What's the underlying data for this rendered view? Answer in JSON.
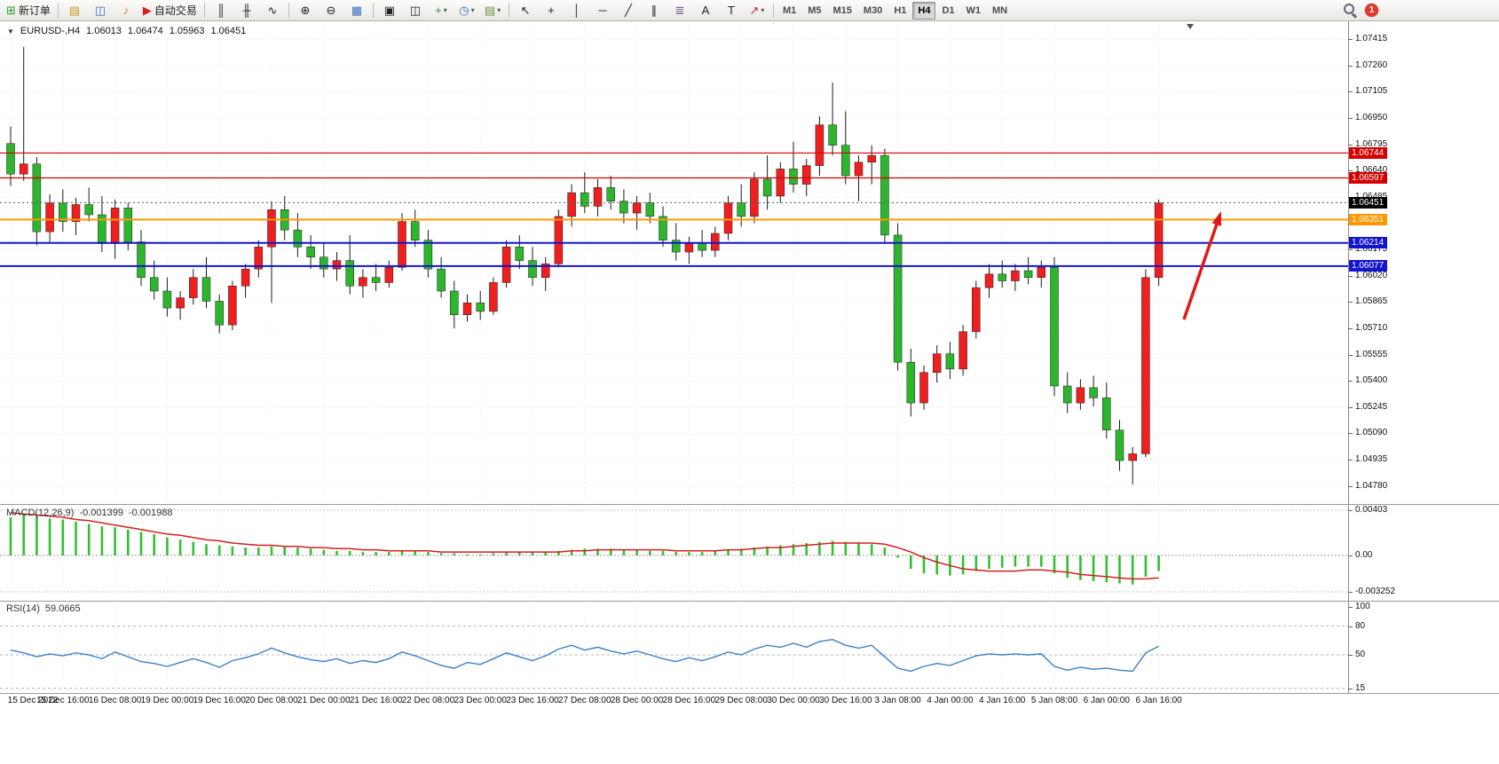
{
  "icons": {
    "dropdown": "▼"
  },
  "toolbar": {
    "badge_count": "1",
    "timeframes": [
      "M1",
      "M5",
      "M15",
      "M30",
      "H1",
      "H4",
      "D1",
      "W1",
      "MN"
    ],
    "active_timeframe": "H4",
    "items": [
      {
        "name": "new-order-button",
        "icon": "⊞",
        "color": "#2e9e2e",
        "label": "新订单"
      },
      {
        "sep": true
      },
      {
        "name": "charts-button",
        "icon": "▤",
        "color": "#c89a1e"
      },
      {
        "name": "profiles-button",
        "icon": "◫",
        "color": "#3a6fc4"
      },
      {
        "name": "alerts-button",
        "icon": "♪",
        "color": "#b8860b"
      },
      {
        "name": "autotrading-button",
        "icon": "▶",
        "color": "#cc2222",
        "label": "自动交易"
      },
      {
        "sep": true
      },
      {
        "name": "bar-chart-button",
        "icon": "║"
      },
      {
        "name": "candlestick-button",
        "icon": "╫"
      },
      {
        "name": "line-chart-button",
        "icon": "∿"
      },
      {
        "sep": true
      },
      {
        "name": "zoom-in-button",
        "icon": "⊕"
      },
      {
        "name": "zoom-out-button",
        "icon": "⊖"
      },
      {
        "name": "tile-windows-button",
        "icon": "▦",
        "color": "#3a6fc4"
      },
      {
        "sep": true
      },
      {
        "name": "cascade-windows-button",
        "icon": "▣"
      },
      {
        "name": "arrange-windows-button",
        "icon": "◫"
      },
      {
        "name": "new-chart-button",
        "icon": "+",
        "color": "#2e9e2e",
        "dropdown": true
      },
      {
        "name": "period-button",
        "icon": "◷",
        "color": "#3a6fc4",
        "dropdown": true
      },
      {
        "name": "template-button",
        "icon": "▤",
        "color": "#6a8f3f",
        "dropdown": true
      },
      {
        "sep": true
      },
      {
        "name": "cursor-button",
        "icon": "↖"
      },
      {
        "name": "crosshair-button",
        "icon": "+"
      },
      {
        "name": "vertical-line-button",
        "icon": "│"
      },
      {
        "name": "horizontal-line-button",
        "icon": "─"
      },
      {
        "name": "trendline-button",
        "icon": "╱"
      },
      {
        "name": "channel-button",
        "icon": "∥"
      },
      {
        "name": "fibonacci-button",
        "icon": "≣",
        "color": "#7a5a9a"
      },
      {
        "name": "text-button",
        "icon": "A"
      },
      {
        "name": "label-button",
        "icon": "T"
      },
      {
        "name": "arrows-button",
        "icon": "↗",
        "color": "#b03030",
        "dropdown": true
      },
      {
        "sep": true
      }
    ]
  },
  "chart": {
    "symbol_period": "EURUSD-,H4",
    "ohlc": {
      "o": "1.06013",
      "h": "1.06474",
      "l": "1.05963",
      "c": "1.06451"
    },
    "price_axis": [
      "1.07415",
      "1.07260",
      "1.07105",
      "1.06950",
      "1.06795",
      "1.06640",
      "1.06485",
      "1.06330",
      "1.06175",
      "1.06020",
      "1.05865",
      "1.05710",
      "1.05555",
      "1.05400",
      "1.05245",
      "1.05090",
      "1.04935",
      "1.04780"
    ],
    "time_axis": [
      [
        0,
        "15 Dec 2022"
      ],
      [
        4,
        "15 Dec 16:00"
      ],
      [
        8,
        "16 Dec 08:00"
      ],
      [
        12,
        "19 Dec 00:00"
      ],
      [
        16,
        "19 Dec 16:00"
      ],
      [
        20,
        "20 Dec 08:00"
      ],
      [
        24,
        "21 Dec 00:00"
      ],
      [
        28,
        "21 Dec 16:00"
      ],
      [
        32,
        "22 Dec 08:00"
      ],
      [
        36,
        "23 Dec 00:00"
      ],
      [
        40,
        "23 Dec 16:00"
      ],
      [
        44,
        "27 Dec 08:00"
      ],
      [
        48,
        "28 Dec 00:00"
      ],
      [
        52,
        "28 Dec 16:00"
      ],
      [
        56,
        "29 Dec 08:00"
      ],
      [
        60,
        "30 Dec 00:00"
      ],
      [
        64,
        "30 Dec 16:00"
      ],
      [
        68,
        "3 Jan 08:00"
      ],
      [
        72,
        "4 Jan 00:00"
      ],
      [
        76,
        "4 Jan 16:00"
      ],
      [
        80,
        "5 Jan 08:00"
      ],
      [
        84,
        "6 Jan 00:00"
      ],
      [
        88,
        "6 Jan 16:00"
      ]
    ],
    "lines": [
      {
        "label": "1.06744",
        "price": 1.06744,
        "color": "#d40000",
        "width": 1.2
      },
      {
        "label": "1.06597",
        "price": 1.06597,
        "color": "#d40000",
        "width": 1.2
      },
      {
        "label": "1.06451",
        "price": 1.06451,
        "color": "#555555",
        "width": 1,
        "dash": "2,3",
        "box": "#000000",
        "current": true
      },
      {
        "label": "1.06351",
        "price": 1.06351,
        "color": "#ff9800",
        "width": 2
      },
      {
        "label": "1.06214",
        "price": 1.06214,
        "color": "#1414cc",
        "width": 2
      },
      {
        "label": "1.06077",
        "price": 1.06077,
        "color": "#1414cc",
        "width": 2
      }
    ],
    "annotations": [
      {
        "type": "arrow",
        "from": [
          1334,
          336
        ],
        "to": [
          1376,
          214
        ],
        "color": "#e01818",
        "width": 3.5
      }
    ]
  },
  "chart_data": [
    {
      "type": "candlestick",
      "symbol": "EURUSD-",
      "period": "H4",
      "up_color": "#ef1f1f",
      "down_color": "#2eb52e",
      "ylim": [
        1.047,
        1.075
      ],
      "candles": [
        [
          1.068,
          1.069,
          1.0655,
          1.0662
        ],
        [
          1.0662,
          1.0737,
          1.0658,
          1.0668
        ],
        [
          1.0668,
          1.0672,
          1.062,
          1.0628
        ],
        [
          1.0628,
          1.065,
          1.0622,
          1.0645
        ],
        [
          1.0645,
          1.0653,
          1.0628,
          1.0634
        ],
        [
          1.0634,
          1.0648,
          1.0626,
          1.0644
        ],
        [
          1.0644,
          1.0654,
          1.0634,
          1.0638
        ],
        [
          1.0638,
          1.0649,
          1.0616,
          1.0621
        ],
        [
          1.0621,
          1.0647,
          1.0612,
          1.0642
        ],
        [
          1.0642,
          1.0645,
          1.0617,
          1.0622
        ],
        [
          1.0622,
          1.0629,
          1.0596,
          1.0601
        ],
        [
          1.0601,
          1.0611,
          1.0588,
          1.0593
        ],
        [
          1.0593,
          1.0601,
          1.0578,
          1.0583
        ],
        [
          1.0583,
          1.0593,
          1.0576,
          1.0589
        ],
        [
          1.0589,
          1.0606,
          1.0585,
          1.0601
        ],
        [
          1.0601,
          1.0613,
          1.0583,
          1.0587
        ],
        [
          1.0587,
          1.0591,
          1.0568,
          1.0573
        ],
        [
          1.0573,
          1.0599,
          1.057,
          1.0596
        ],
        [
          1.0596,
          1.0609,
          1.0589,
          1.0606
        ],
        [
          1.0606,
          1.0623,
          1.0601,
          1.0619
        ],
        [
          1.0619,
          1.0646,
          1.0586,
          1.0641
        ],
        [
          1.0641,
          1.0649,
          1.0623,
          1.0629
        ],
        [
          1.0629,
          1.0639,
          1.0613,
          1.0619
        ],
        [
          1.0619,
          1.0626,
          1.0606,
          1.0613
        ],
        [
          1.0613,
          1.0621,
          1.0601,
          1.0606
        ],
        [
          1.0606,
          1.0616,
          1.0599,
          1.0611
        ],
        [
          1.0611,
          1.0626,
          1.0591,
          1.0596
        ],
        [
          1.0596,
          1.0606,
          1.0589,
          1.0601
        ],
        [
          1.0601,
          1.0609,
          1.0593,
          1.0598
        ],
        [
          1.0598,
          1.0611,
          1.0595,
          1.0607
        ],
        [
          1.0607,
          1.0639,
          1.0605,
          1.0634
        ],
        [
          1.0634,
          1.0641,
          1.0619,
          1.0623
        ],
        [
          1.0623,
          1.0629,
          1.0601,
          1.0606
        ],
        [
          1.0606,
          1.0613,
          1.0589,
          1.0593
        ],
        [
          1.0593,
          1.0599,
          1.0571,
          1.0579
        ],
        [
          1.0579,
          1.0591,
          1.0575,
          1.0586
        ],
        [
          1.0586,
          1.0593,
          1.0576,
          1.0581
        ],
        [
          1.0581,
          1.0601,
          1.0579,
          1.0598
        ],
        [
          1.0598,
          1.0623,
          1.0595,
          1.0619
        ],
        [
          1.0619,
          1.0626,
          1.0606,
          1.0611
        ],
        [
          1.0611,
          1.0619,
          1.0596,
          1.0601
        ],
        [
          1.0601,
          1.0613,
          1.0593,
          1.0609
        ],
        [
          1.0609,
          1.0641,
          1.0607,
          1.0637
        ],
        [
          1.0637,
          1.0656,
          1.0631,
          1.0651
        ],
        [
          1.0651,
          1.0663,
          1.0639,
          1.0643
        ],
        [
          1.0643,
          1.0659,
          1.0637,
          1.0654
        ],
        [
          1.0654,
          1.0661,
          1.0641,
          1.0646
        ],
        [
          1.0646,
          1.0653,
          1.0633,
          1.0639
        ],
        [
          1.0639,
          1.0649,
          1.0629,
          1.0645
        ],
        [
          1.0645,
          1.0651,
          1.0633,
          1.0637
        ],
        [
          1.0637,
          1.0643,
          1.0619,
          1.0623
        ],
        [
          1.0623,
          1.0633,
          1.0611,
          1.0616
        ],
        [
          1.0616,
          1.0625,
          1.0609,
          1.0621
        ],
        [
          1.0621,
          1.0629,
          1.0613,
          1.0617
        ],
        [
          1.0617,
          1.0631,
          1.0613,
          1.0627
        ],
        [
          1.0627,
          1.0649,
          1.0623,
          1.0645
        ],
        [
          1.0645,
          1.0656,
          1.0631,
          1.0637
        ],
        [
          1.0637,
          1.0663,
          1.0633,
          1.0659
        ],
        [
          1.0659,
          1.0673,
          1.0641,
          1.0649
        ],
        [
          1.0649,
          1.0669,
          1.0645,
          1.0665
        ],
        [
          1.0665,
          1.0681,
          1.0651,
          1.0656
        ],
        [
          1.0656,
          1.0671,
          1.0649,
          1.0667
        ],
        [
          1.0667,
          1.0696,
          1.0661,
          1.0691
        ],
        [
          1.0691,
          1.0716,
          1.0673,
          1.0679
        ],
        [
          1.0679,
          1.0699,
          1.0656,
          1.0661
        ],
        [
          1.0661,
          1.0673,
          1.0646,
          1.0669
        ],
        [
          1.0669,
          1.0679,
          1.0656,
          1.0673
        ],
        [
          1.0673,
          1.0677,
          1.0621,
          1.0626
        ],
        [
          1.0626,
          1.0633,
          1.0546,
          1.0551
        ],
        [
          1.0551,
          1.0559,
          1.0519,
          1.0527
        ],
        [
          1.0527,
          1.0549,
          1.0523,
          1.0545
        ],
        [
          1.0545,
          1.0561,
          1.0539,
          1.0556
        ],
        [
          1.0556,
          1.0563,
          1.0541,
          1.0547
        ],
        [
          1.0547,
          1.0573,
          1.0543,
          1.0569
        ],
        [
          1.0569,
          1.0599,
          1.0565,
          1.0595
        ],
        [
          1.0595,
          1.0609,
          1.0589,
          1.0603
        ],
        [
          1.0603,
          1.0611,
          1.0595,
          1.0599
        ],
        [
          1.0599,
          1.0609,
          1.0593,
          1.0605
        ],
        [
          1.0605,
          1.0613,
          1.0597,
          1.0601
        ],
        [
          1.0601,
          1.0611,
          1.0595,
          1.0607
        ],
        [
          1.0607,
          1.0613,
          1.0531,
          1.0537
        ],
        [
          1.0537,
          1.0545,
          1.0521,
          1.0527
        ],
        [
          1.0527,
          1.0541,
          1.0523,
          1.0536
        ],
        [
          1.0536,
          1.0543,
          1.0525,
          1.053
        ],
        [
          1.053,
          1.0539,
          1.0506,
          1.0511
        ],
        [
          1.0511,
          1.0517,
          1.0487,
          1.0493
        ],
        [
          1.0493,
          1.0501,
          1.0479,
          1.0497
        ],
        [
          1.0497,
          1.0606,
          1.0495,
          1.0601
        ],
        [
          1.0601,
          1.0647,
          1.0596,
          1.0645
        ]
      ]
    },
    {
      "type": "bar+line",
      "name": "MACD(12,26,9)",
      "value_main": "-0.001399",
      "value_signal": "-0.001988",
      "hist_color": "#30c030",
      "signal_color": "#d42020",
      "axis": [
        [
          "0.00403",
          0.00403
        ],
        [
          "0.00",
          0
        ],
        [
          "-0.003252",
          -0.003252
        ]
      ],
      "hist": [
        0.0034,
        0.0036,
        0.0035,
        0.0033,
        0.0032,
        0.003,
        0.0028,
        0.0026,
        0.0025,
        0.0023,
        0.0021,
        0.0019,
        0.0016,
        0.0014,
        0.0012,
        0.001,
        0.0009,
        0.0008,
        0.0007,
        0.0007,
        0.0008,
        0.0008,
        0.0007,
        0.0006,
        0.0005,
        0.0004,
        0.0004,
        0.0003,
        0.0003,
        0.0003,
        0.0004,
        0.0004,
        0.0003,
        0.0002,
        0.0002,
        0.0001,
        0.0001,
        0.0002,
        0.0003,
        0.0003,
        0.0003,
        0.0003,
        0.0004,
        0.0005,
        0.0006,
        0.0006,
        0.0006,
        0.0005,
        0.0005,
        0.0004,
        0.0004,
        0.0003,
        0.0003,
        0.0003,
        0.0004,
        0.0005,
        0.0006,
        0.0007,
        0.0008,
        0.0009,
        0.001,
        0.0011,
        0.0012,
        0.0013,
        0.0012,
        0.0011,
        0.001,
        0.0007,
        -0.0002,
        -0.0012,
        -0.0016,
        -0.0017,
        -0.0018,
        -0.0017,
        -0.0014,
        -0.0012,
        -0.0011,
        -0.001,
        -0.001,
        -0.001,
        -0.0016,
        -0.002,
        -0.0022,
        -0.0023,
        -0.0024,
        -0.0025,
        -0.0026,
        -0.0019,
        -0.0014
      ],
      "signal": [
        0.0038,
        0.0037,
        0.0036,
        0.0035,
        0.0034,
        0.0032,
        0.0031,
        0.0029,
        0.0027,
        0.0025,
        0.0023,
        0.0021,
        0.0019,
        0.0018,
        0.0016,
        0.0014,
        0.0013,
        0.0011,
        0.001,
        0.0009,
        0.0009,
        0.0008,
        0.0008,
        0.0007,
        0.0007,
        0.0006,
        0.0006,
        0.0005,
        0.0005,
        0.0004,
        0.0004,
        0.0004,
        0.0004,
        0.0003,
        0.0003,
        0.0003,
        0.0003,
        0.0003,
        0.0003,
        0.0003,
        0.0003,
        0.0003,
        0.0003,
        0.0004,
        0.0004,
        0.0005,
        0.0005,
        0.0005,
        0.0005,
        0.0005,
        0.0005,
        0.0004,
        0.0004,
        0.0004,
        0.0004,
        0.0005,
        0.0005,
        0.0006,
        0.0007,
        0.0007,
        0.0008,
        0.0009,
        0.001,
        0.0011,
        0.0011,
        0.0011,
        0.0011,
        0.001,
        0.0007,
        0.0003,
        -0.0002,
        -0.0006,
        -0.0009,
        -0.0012,
        -0.0013,
        -0.0014,
        -0.0014,
        -0.0014,
        -0.0013,
        -0.0013,
        -0.0014,
        -0.0015,
        -0.0017,
        -0.0018,
        -0.0019,
        -0.002,
        -0.0021,
        -0.0021,
        -0.002
      ]
    },
    {
      "type": "line",
      "name": "RSI(14)",
      "value": "59.0665",
      "color": "#3c80c8",
      "levels": [
        [
          "100",
          100
        ],
        [
          "80",
          80
        ],
        [
          "50",
          50
        ],
        [
          "15",
          15
        ]
      ],
      "ylim": [
        15,
        100
      ],
      "values": [
        55,
        52,
        48,
        51,
        49,
        52,
        50,
        46,
        53,
        48,
        43,
        41,
        38,
        42,
        46,
        42,
        37,
        44,
        47,
        51,
        57,
        52,
        48,
        45,
        43,
        46,
        41,
        44,
        42,
        46,
        53,
        49,
        44,
        39,
        36,
        42,
        40,
        46,
        52,
        48,
        44,
        49,
        56,
        60,
        55,
        58,
        54,
        51,
        54,
        50,
        46,
        43,
        47,
        44,
        48,
        53,
        50,
        56,
        60,
        58,
        62,
        58,
        64,
        66,
        60,
        57,
        60,
        48,
        36,
        33,
        38,
        41,
        39,
        44,
        49,
        51,
        50,
        51,
        50,
        51,
        38,
        34,
        37,
        35,
        36,
        34,
        33,
        52,
        59
      ]
    }
  ]
}
